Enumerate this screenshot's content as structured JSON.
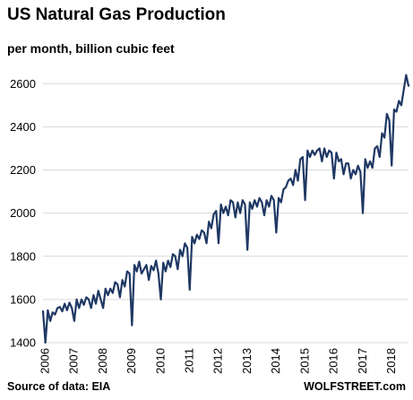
{
  "chart_data": {
    "type": "line",
    "title": "US Natural Gas Production",
    "subtitle": "per month, billion cubic feet",
    "xlabel": "",
    "ylabel": "",
    "source": "Source of data: EIA",
    "brand": "WOLFSTREET.com",
    "x_range": [
      "2006-01",
      "2018-09"
    ],
    "ylim": [
      1400,
      2680
    ],
    "yticks": [
      1400,
      1600,
      1800,
      2000,
      2200,
      2400,
      2600
    ],
    "xticks": [
      "2006",
      "2007",
      "2008",
      "2009",
      "2010",
      "2011",
      "2012",
      "2013",
      "2014",
      "2015",
      "2016",
      "2017",
      "2018"
    ],
    "grid": "horizontal",
    "line_color": "#1f3864",
    "series": [
      {
        "x_start": "2006-01",
        "frequency": "monthly",
        "values": [
          1545,
          1400,
          1550,
          1500,
          1540,
          1530,
          1560,
          1565,
          1545,
          1580,
          1550,
          1585,
          1560,
          1500,
          1600,
          1560,
          1600,
          1575,
          1610,
          1600,
          1560,
          1620,
          1580,
          1640,
          1600,
          1560,
          1650,
          1620,
          1650,
          1630,
          1680,
          1670,
          1610,
          1690,
          1660,
          1730,
          1720,
          1480,
          1760,
          1730,
          1775,
          1720,
          1740,
          1760,
          1690,
          1755,
          1735,
          1780,
          1720,
          1600,
          1770,
          1730,
          1780,
          1750,
          1810,
          1800,
          1740,
          1830,
          1800,
          1860,
          1840,
          1645,
          1890,
          1860,
          1900,
          1880,
          1920,
          1910,
          1860,
          1960,
          1930,
          1995,
          2010,
          1860,
          2040,
          2000,
          2030,
          1990,
          2060,
          2050,
          1980,
          2050,
          2000,
          2060,
          2040,
          1830,
          2050,
          2020,
          2060,
          2030,
          2070,
          2050,
          1990,
          2060,
          2030,
          2080,
          2060,
          1910,
          2070,
          2050,
          2110,
          2120,
          2150,
          2160,
          2130,
          2200,
          2150,
          2250,
          2260,
          2060,
          2290,
          2260,
          2290,
          2270,
          2290,
          2300,
          2240,
          2300,
          2260,
          2290,
          2280,
          2160,
          2280,
          2240,
          2250,
          2180,
          2230,
          2230,
          2160,
          2200,
          2180,
          2220,
          2190,
          2000,
          2250,
          2210,
          2240,
          2210,
          2300,
          2310,
          2260,
          2370,
          2350,
          2460,
          2430,
          2220,
          2480,
          2470,
          2520,
          2500,
          2570,
          2640,
          2590
        ]
      }
    ]
  }
}
